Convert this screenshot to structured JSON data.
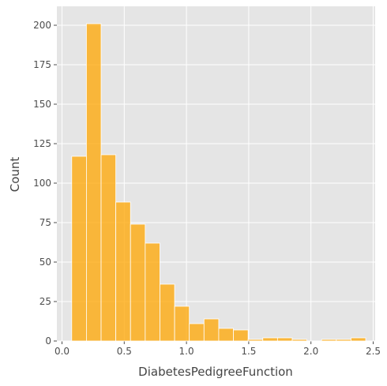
{
  "chart_data": {
    "type": "bar",
    "subtype": "histogram",
    "title": "",
    "xlabel": "DiabetesPedigreeFunction",
    "ylabel": "Count",
    "xlim": [
      -0.0,
      2.5
    ],
    "ylim": [
      0,
      210
    ],
    "xticks": [
      "0.0",
      "0.5",
      "1.0",
      "1.5",
      "2.0",
      "2.5"
    ],
    "yticks": [
      "0",
      "25",
      "50",
      "75",
      "100",
      "125",
      "150",
      "175",
      "200"
    ],
    "grid": true,
    "bin_start": 0.078,
    "bin_width": 0.1181,
    "values": [
      117,
      201,
      118,
      88,
      74,
      62,
      36,
      22,
      11,
      14,
      8,
      7,
      1,
      2,
      2,
      1,
      0,
      1,
      1,
      2
    ],
    "colors": {
      "bar": "#FFA500",
      "background": "#E5E5E5",
      "grid": "#FFFFFF",
      "bar_edge": "#FFFFFF"
    }
  }
}
